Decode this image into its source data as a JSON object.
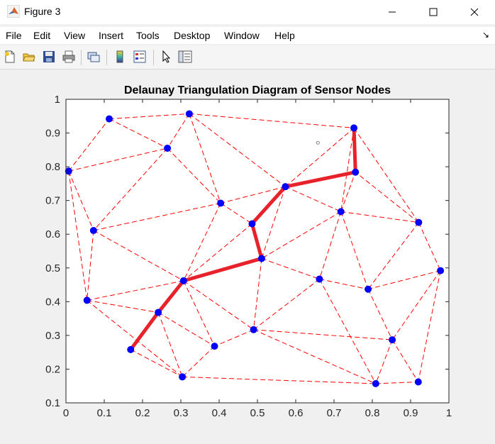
{
  "window": {
    "title": "Figure 3"
  },
  "menu": {
    "items": [
      "File",
      "Edit",
      "View",
      "Insert",
      "Tools",
      "Desktop",
      "Window",
      "Help"
    ]
  },
  "toolbar": {
    "icons": [
      "new-figure-icon",
      "open-file-icon",
      "save-icon",
      "print-icon",
      "link-plot-icon",
      "insert-colorbar-icon",
      "insert-legend-icon",
      "edit-plot-icon",
      "property-inspector-icon"
    ]
  },
  "chart_data": {
    "type": "scatter",
    "title": "Delaunay Triangulation Diagram of Sensor Nodes",
    "xlim": [
      0,
      1
    ],
    "ylim": [
      0.1,
      1
    ],
    "xticks": [
      "0",
      "0.1",
      "0.2",
      "0.3",
      "0.4",
      "0.5",
      "0.6",
      "0.7",
      "0.8",
      "0.9",
      "1"
    ],
    "yticks": [
      "0.1",
      "0.2",
      "0.3",
      "0.4",
      "0.5",
      "0.6",
      "0.7",
      "0.8",
      "0.9",
      "1"
    ],
    "grid": false,
    "nodes": [
      {
        "x": 0.007,
        "y": 0.787
      },
      {
        "x": 0.113,
        "y": 0.942
      },
      {
        "x": 0.322,
        "y": 0.957
      },
      {
        "x": 0.265,
        "y": 0.855
      },
      {
        "x": 0.752,
        "y": 0.915
      },
      {
        "x": 0.756,
        "y": 0.784
      },
      {
        "x": 0.573,
        "y": 0.741
      },
      {
        "x": 0.404,
        "y": 0.692
      },
      {
        "x": 0.072,
        "y": 0.611
      },
      {
        "x": 0.486,
        "y": 0.631
      },
      {
        "x": 0.718,
        "y": 0.667
      },
      {
        "x": 0.921,
        "y": 0.635
      },
      {
        "x": 0.511,
        "y": 0.528
      },
      {
        "x": 0.978,
        "y": 0.492
      },
      {
        "x": 0.055,
        "y": 0.404
      },
      {
        "x": 0.307,
        "y": 0.462
      },
      {
        "x": 0.662,
        "y": 0.467
      },
      {
        "x": 0.789,
        "y": 0.437
      },
      {
        "x": 0.241,
        "y": 0.368
      },
      {
        "x": 0.49,
        "y": 0.317
      },
      {
        "x": 0.852,
        "y": 0.287
      },
      {
        "x": 0.169,
        "y": 0.258
      },
      {
        "x": 0.388,
        "y": 0.268
      },
      {
        "x": 0.304,
        "y": 0.177
      },
      {
        "x": 0.809,
        "y": 0.157
      },
      {
        "x": 0.92,
        "y": 0.162
      }
    ],
    "edges": [
      [
        0,
        1
      ],
      [
        1,
        2
      ],
      [
        1,
        3
      ],
      [
        2,
        3
      ],
      [
        0,
        3
      ],
      [
        0,
        8
      ],
      [
        0,
        14
      ],
      [
        3,
        8
      ],
      [
        3,
        7
      ],
      [
        2,
        7
      ],
      [
        2,
        6
      ],
      [
        2,
        4
      ],
      [
        6,
        4
      ],
      [
        6,
        5
      ],
      [
        4,
        5
      ],
      [
        4,
        10
      ],
      [
        4,
        11
      ],
      [
        6,
        7
      ],
      [
        6,
        9
      ],
      [
        6,
        10
      ],
      [
        6,
        12
      ],
      [
        7,
        8
      ],
      [
        7,
        9
      ],
      [
        7,
        15
      ],
      [
        8,
        15
      ],
      [
        8,
        14
      ],
      [
        9,
        12
      ],
      [
        9,
        15
      ],
      [
        10,
        12
      ],
      [
        10,
        5
      ],
      [
        10,
        11
      ],
      [
        10,
        17
      ],
      [
        10,
        16
      ],
      [
        11,
        5
      ],
      [
        11,
        13
      ],
      [
        11,
        17
      ],
      [
        12,
        15
      ],
      [
        12,
        16
      ],
      [
        12,
        19
      ],
      [
        13,
        17
      ],
      [
        13,
        20
      ],
      [
        13,
        25
      ],
      [
        14,
        15
      ],
      [
        14,
        18
      ],
      [
        14,
        23
      ],
      [
        15,
        18
      ],
      [
        15,
        22
      ],
      [
        15,
        19
      ],
      [
        16,
        17
      ],
      [
        16,
        19
      ],
      [
        16,
        24
      ],
      [
        17,
        20
      ],
      [
        18,
        21
      ],
      [
        18,
        22
      ],
      [
        18,
        23
      ],
      [
        19,
        22
      ],
      [
        19,
        20
      ],
      [
        19,
        24
      ],
      [
        20,
        24
      ],
      [
        20,
        25
      ],
      [
        21,
        23
      ],
      [
        22,
        23
      ],
      [
        23,
        24
      ],
      [
        24,
        25
      ]
    ],
    "path": [
      {
        "x": 0.169,
        "y": 0.258
      },
      {
        "x": 0.241,
        "y": 0.368
      },
      {
        "x": 0.307,
        "y": 0.462
      },
      {
        "x": 0.511,
        "y": 0.528
      },
      {
        "x": 0.486,
        "y": 0.631
      },
      {
        "x": 0.573,
        "y": 0.741
      },
      {
        "x": 0.756,
        "y": 0.784
      },
      {
        "x": 0.752,
        "y": 0.915
      }
    ],
    "marker_point": {
      "x": 0.658,
      "y": 0.871
    },
    "colors": {
      "edges": "#ff0000",
      "path": "#e8222a",
      "nodes": "#0000ff",
      "marker": "#888888"
    }
  }
}
